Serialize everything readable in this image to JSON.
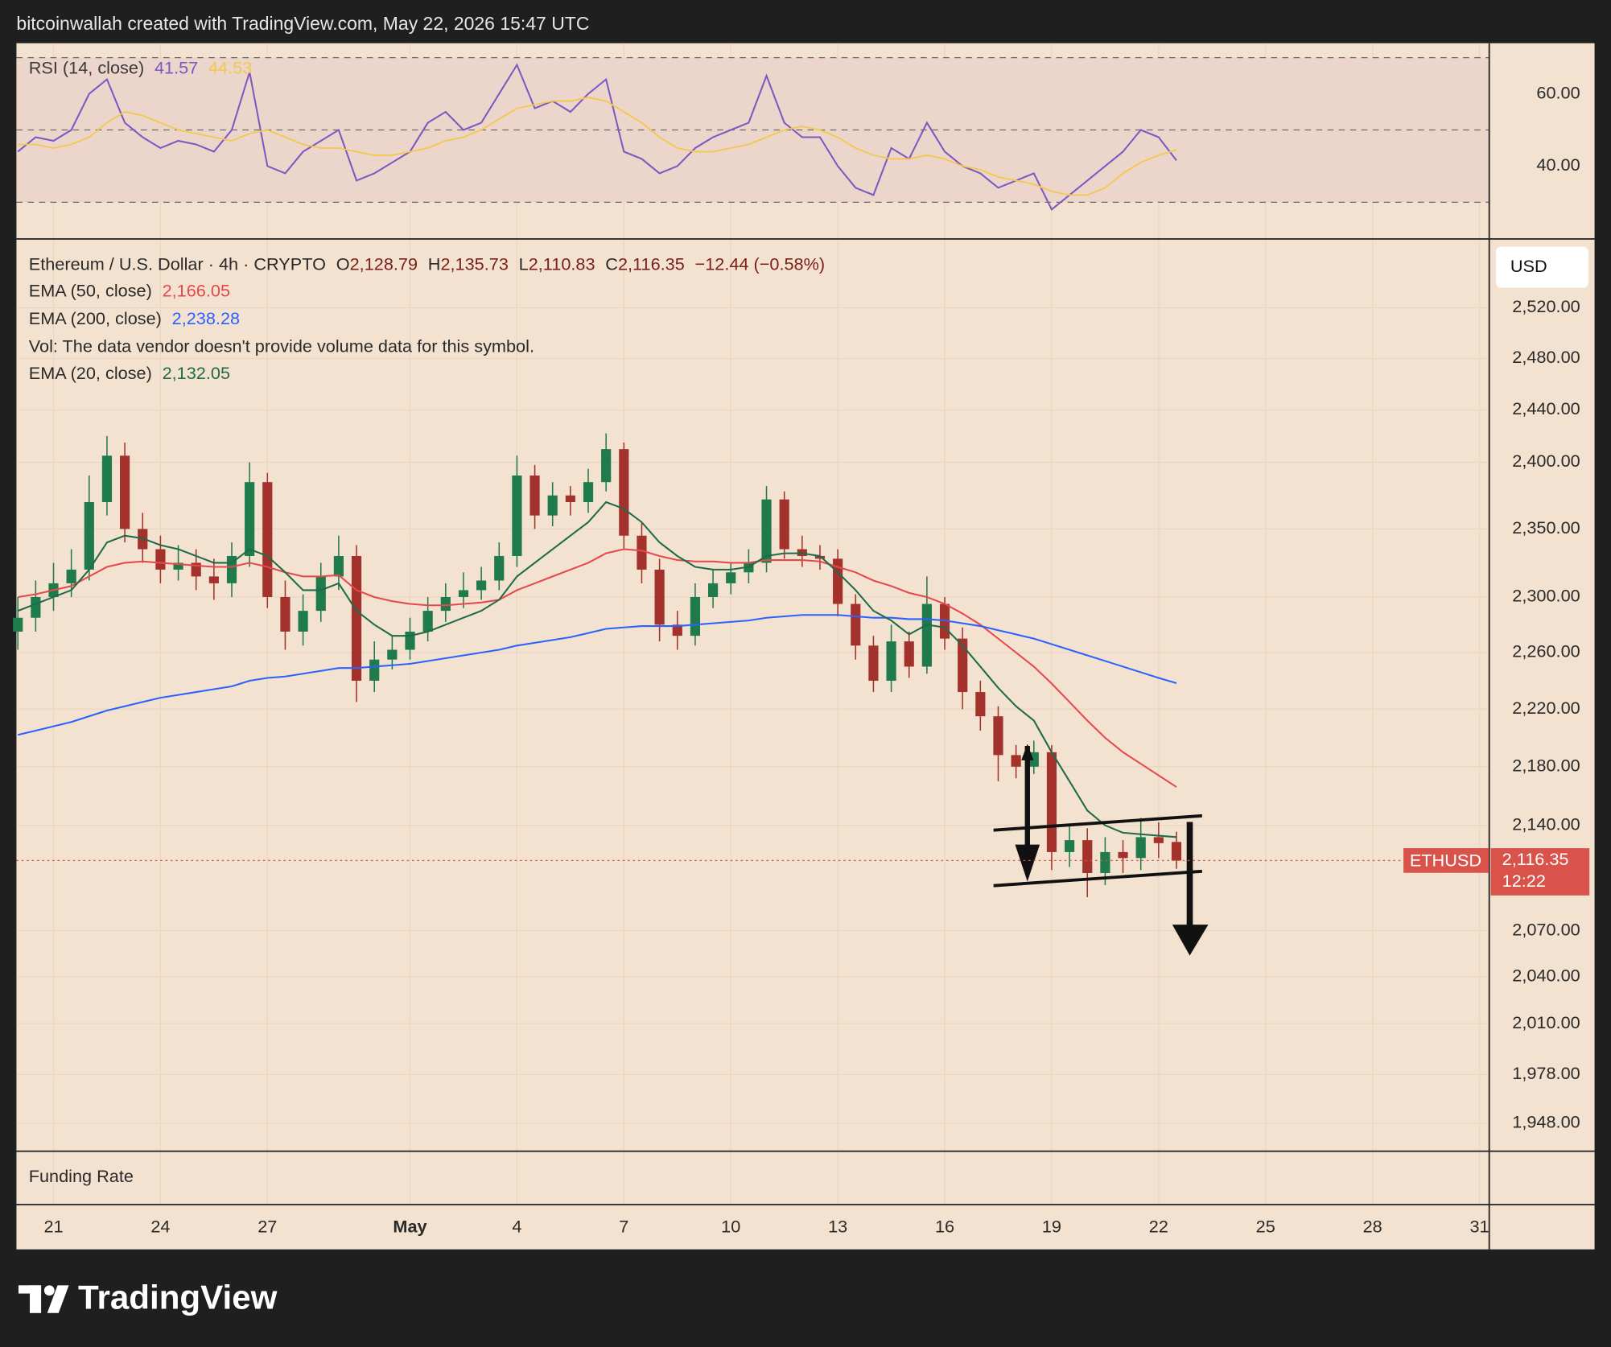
{
  "header": {
    "title": "bitcoinwallah created with TradingView.com, May 22, 2026 15:47 UTC"
  },
  "funding_rate": {
    "label": "Funding Rate"
  },
  "logo": {
    "text": "TradingView"
  },
  "chart_data": [
    {
      "type": "line",
      "label": "RSI (14, close)",
      "xlim": [
        -1.04,
        40.26
      ],
      "ylim": [
        20,
        74
      ],
      "yticks": [
        {
          "value": 40,
          "label": "40.00"
        },
        {
          "value": 60,
          "label": "60.00"
        }
      ],
      "bands": [
        30,
        50,
        70
      ],
      "x": [
        -1,
        -0.5,
        0,
        0.5,
        1,
        1.5,
        2,
        2.5,
        3,
        3.5,
        4,
        4.5,
        5,
        5.5,
        6,
        6.5,
        7,
        7.5,
        8,
        8.5,
        9,
        9.5,
        10,
        10.5,
        11,
        11.5,
        12,
        12.5,
        13,
        13.5,
        14,
        14.5,
        15,
        15.5,
        16,
        16.5,
        17,
        17.5,
        18,
        18.5,
        19,
        19.5,
        20,
        20.5,
        21,
        21.5,
        22,
        22.5,
        23,
        23.5,
        24,
        24.5,
        25,
        25.5,
        26,
        26.5,
        27,
        27.5,
        28,
        28.5,
        29,
        29.5,
        30,
        30.5,
        31,
        31.5
      ],
      "series": [
        {
          "color": "#7e57c2",
          "legend_value": "41.57",
          "values": [
            44,
            48,
            47,
            50,
            60,
            64,
            52,
            48,
            45,
            47,
            46,
            44,
            50,
            66,
            40,
            38,
            44,
            47,
            50,
            36,
            38,
            41,
            44,
            52,
            55,
            50,
            52,
            60,
            68,
            56,
            58,
            55,
            60,
            64,
            44,
            42,
            38,
            40,
            45,
            48,
            50,
            52,
            65,
            52,
            48,
            48,
            40,
            34,
            32,
            45,
            42,
            52,
            44,
            40,
            38,
            34,
            36,
            38,
            28,
            32,
            36,
            40,
            44,
            50,
            48,
            41.57
          ]
        },
        {
          "color": "#f2c94c",
          "legend_value": "44.53",
          "values": [
            46,
            46,
            45,
            46,
            48,
            52,
            55,
            54,
            52,
            50,
            49,
            48,
            47,
            49,
            50,
            48,
            46,
            45,
            45,
            44,
            43,
            43,
            44,
            45,
            47,
            48,
            50,
            53,
            56,
            57,
            58,
            58,
            59,
            58,
            55,
            52,
            48,
            45,
            44,
            44,
            45,
            46,
            48,
            50,
            51,
            50,
            48,
            45,
            43,
            42,
            42,
            43,
            42,
            40,
            39,
            37,
            36,
            35,
            33,
            32,
            32,
            34,
            38,
            41,
            43,
            44.53
          ]
        }
      ]
    },
    {
      "type": "candlestick",
      "title": "Ethereum / U.S. Dollar · 4h · CRYPTO",
      "ohlc_legend": [
        {
          "label": "O",
          "value": "2,128.79"
        },
        {
          "label": "H",
          "value": "2,135.73"
        },
        {
          "label": "L",
          "value": "2,110.83"
        },
        {
          "label": "C",
          "value": "2,116.35"
        }
      ],
      "change": "−12.44 (−0.58%)",
      "volume_note": "Vol: The data vendor doesn't provide volume data for this symbol.",
      "currency": "USD",
      "last_price": {
        "symbol": "ETHUSD",
        "price": "2,116.35",
        "countdown": "12:22"
      },
      "log": true,
      "grid": true,
      "up_color": "#1f7a4c",
      "down_color": "#a3322c",
      "xlim": [
        -1.04,
        40.26
      ],
      "ylim": [
        1931,
        2575
      ],
      "xticks": [
        {
          "value": 0,
          "label": "21"
        },
        {
          "value": 3,
          "label": "24"
        },
        {
          "value": 6,
          "label": "27"
        },
        {
          "value": 10,
          "label": "May"
        },
        {
          "value": 13,
          "label": "4"
        },
        {
          "value": 16,
          "label": "7"
        },
        {
          "value": 19,
          "label": "10"
        },
        {
          "value": 22,
          "label": "13"
        },
        {
          "value": 25,
          "label": "16"
        },
        {
          "value": 28,
          "label": "19"
        },
        {
          "value": 31,
          "label": "22"
        },
        {
          "value": 34,
          "label": "25"
        },
        {
          "value": 37,
          "label": "28"
        },
        {
          "value": 40,
          "label": "31"
        }
      ],
      "yticks": [
        {
          "value": 1948,
          "label": "1,948.00"
        },
        {
          "value": 1978,
          "label": "1,978.00"
        },
        {
          "value": 2010,
          "label": "2,010.00"
        },
        {
          "value": 2040,
          "label": "2,040.00"
        },
        {
          "value": 2070,
          "label": "2,070.00"
        },
        {
          "value": 2140,
          "label": "2,140.00"
        },
        {
          "value": 2180,
          "label": "2,180.00"
        },
        {
          "value": 2220,
          "label": "2,220.00"
        },
        {
          "value": 2260,
          "label": "2,260.00"
        },
        {
          "value": 2300,
          "label": "2,300.00"
        },
        {
          "value": 2350,
          "label": "2,350.00"
        },
        {
          "value": 2400,
          "label": "2,400.00"
        },
        {
          "value": 2440,
          "label": "2,440.00"
        },
        {
          "value": 2480,
          "label": "2,480.00"
        },
        {
          "value": 2520,
          "label": "2,520.00"
        }
      ],
      "x": [
        -1,
        -0.5,
        0,
        0.5,
        1,
        1.5,
        2,
        2.5,
        3,
        3.5,
        4,
        4.5,
        5,
        5.5,
        6,
        6.5,
        7,
        7.5,
        8,
        8.5,
        9,
        9.5,
        10,
        10.5,
        11,
        11.5,
        12,
        12.5,
        13,
        13.5,
        14,
        14.5,
        15,
        15.5,
        16,
        16.5,
        17,
        17.5,
        18,
        18.5,
        19,
        19.5,
        20,
        20.5,
        21,
        21.5,
        22,
        22.5,
        23,
        23.5,
        24,
        24.5,
        25,
        25.5,
        26,
        26.5,
        27,
        27.5,
        28,
        28.5,
        29,
        29.5,
        30,
        30.5,
        31,
        31.5
      ],
      "open": [
        2275,
        2285,
        2300,
        2310,
        2320,
        2370,
        2405,
        2350,
        2335,
        2320,
        2325,
        2315,
        2310,
        2330,
        2385,
        2300,
        2275,
        2290,
        2315,
        2330,
        2240,
        2255,
        2262,
        2275,
        2290,
        2300,
        2305,
        2312,
        2330,
        2390,
        2360,
        2375,
        2370,
        2385,
        2410,
        2345,
        2320,
        2280,
        2272,
        2300,
        2310,
        2318,
        2325,
        2372,
        2335,
        2330,
        2328,
        2295,
        2265,
        2240,
        2268,
        2250,
        2295,
        2270,
        2232,
        2215,
        2188,
        2180,
        2190,
        2122,
        2130,
        2108,
        2122,
        2118,
        2132,
        2128.79
      ],
      "high": [
        2300,
        2312,
        2325,
        2335,
        2390,
        2420,
        2415,
        2362,
        2345,
        2338,
        2335,
        2328,
        2340,
        2400,
        2392,
        2312,
        2302,
        2325,
        2345,
        2338,
        2268,
        2272,
        2285,
        2300,
        2310,
        2318,
        2322,
        2340,
        2405,
        2398,
        2385,
        2382,
        2395,
        2422,
        2415,
        2355,
        2328,
        2290,
        2310,
        2320,
        2325,
        2335,
        2382,
        2378,
        2345,
        2338,
        2335,
        2302,
        2272,
        2280,
        2275,
        2315,
        2300,
        2278,
        2240,
        2222,
        2195,
        2198,
        2195,
        2140,
        2138,
        2132,
        2130,
        2145,
        2142,
        2135.73
      ],
      "low": [
        2262,
        2275,
        2290,
        2300,
        2312,
        2360,
        2340,
        2325,
        2310,
        2312,
        2305,
        2298,
        2300,
        2322,
        2292,
        2262,
        2265,
        2282,
        2305,
        2225,
        2232,
        2248,
        2255,
        2268,
        2282,
        2292,
        2298,
        2305,
        2322,
        2350,
        2352,
        2360,
        2362,
        2378,
        2335,
        2310,
        2268,
        2262,
        2265,
        2292,
        2302,
        2310,
        2318,
        2328,
        2322,
        2320,
        2286,
        2255,
        2232,
        2232,
        2242,
        2245,
        2262,
        2220,
        2205,
        2170,
        2172,
        2175,
        2110,
        2112,
        2092,
        2100,
        2108,
        2110,
        2118,
        2110.83
      ],
      "close": [
        2285,
        2300,
        2310,
        2320,
        2370,
        2405,
        2350,
        2335,
        2320,
        2325,
        2315,
        2310,
        2330,
        2385,
        2300,
        2275,
        2290,
        2315,
        2330,
        2240,
        2255,
        2262,
        2275,
        2290,
        2300,
        2305,
        2312,
        2330,
        2390,
        2360,
        2375,
        2370,
        2385,
        2410,
        2345,
        2320,
        2280,
        2272,
        2300,
        2310,
        2318,
        2325,
        2372,
        2335,
        2330,
        2328,
        2295,
        2265,
        2240,
        2268,
        2250,
        2295,
        2270,
        2232,
        2215,
        2188,
        2180,
        2190,
        2122,
        2130,
        2108,
        2122,
        2118,
        2132,
        2128,
        2116.35
      ],
      "series": [
        {
          "name": "EMA (50, close)",
          "legend_value": "2,166.05",
          "color": "#e5484d",
          "values": [
            2300,
            2302,
            2305,
            2308,
            2315,
            2322,
            2325,
            2326,
            2325,
            2324,
            2323,
            2322,
            2322,
            2325,
            2322,
            2318,
            2315,
            2315,
            2316,
            2305,
            2300,
            2297,
            2295,
            2294,
            2294,
            2295,
            2296,
            2298,
            2305,
            2310,
            2315,
            2320,
            2325,
            2332,
            2335,
            2334,
            2330,
            2327,
            2326,
            2326,
            2325,
            2325,
            2327,
            2327,
            2327,
            2326,
            2322,
            2318,
            2312,
            2308,
            2303,
            2300,
            2295,
            2288,
            2280,
            2270,
            2260,
            2250,
            2238,
            2225,
            2212,
            2200,
            2190,
            2182,
            2174,
            2166.05
          ]
        },
        {
          "name": "EMA (200, close)",
          "legend_value": "2,238.28",
          "color": "#2962ff",
          "values": [
            2202,
            2205,
            2208,
            2211,
            2215,
            2219,
            2222,
            2225,
            2228,
            2230,
            2232,
            2234,
            2236,
            2240,
            2242,
            2243,
            2245,
            2247,
            2249,
            2249,
            2250,
            2251,
            2252,
            2254,
            2256,
            2258,
            2260,
            2262,
            2265,
            2267,
            2269,
            2271,
            2274,
            2277,
            2278,
            2279,
            2279,
            2279,
            2280,
            2281,
            2282,
            2283,
            2285,
            2286,
            2287,
            2287,
            2287,
            2286,
            2285,
            2285,
            2284,
            2284,
            2283,
            2281,
            2279,
            2276,
            2273,
            2270,
            2266,
            2262,
            2258,
            2254,
            2250,
            2246,
            2242,
            2238.28
          ]
        },
        {
          "name": "EMA (20, close)",
          "legend_value": "2,132.05",
          "color": "#1e6b4a",
          "values": [
            2290,
            2295,
            2300,
            2305,
            2320,
            2340,
            2345,
            2343,
            2338,
            2335,
            2330,
            2325,
            2325,
            2335,
            2330,
            2318,
            2305,
            2305,
            2310,
            2290,
            2280,
            2272,
            2272,
            2275,
            2280,
            2285,
            2290,
            2298,
            2315,
            2325,
            2335,
            2345,
            2355,
            2370,
            2365,
            2355,
            2340,
            2330,
            2322,
            2320,
            2320,
            2322,
            2330,
            2332,
            2332,
            2330,
            2318,
            2305,
            2290,
            2283,
            2273,
            2280,
            2278,
            2265,
            2250,
            2235,
            2222,
            2212,
            2190,
            2170,
            2150,
            2140,
            2135,
            2134,
            2133,
            2132.05
          ]
        }
      ]
    }
  ]
}
